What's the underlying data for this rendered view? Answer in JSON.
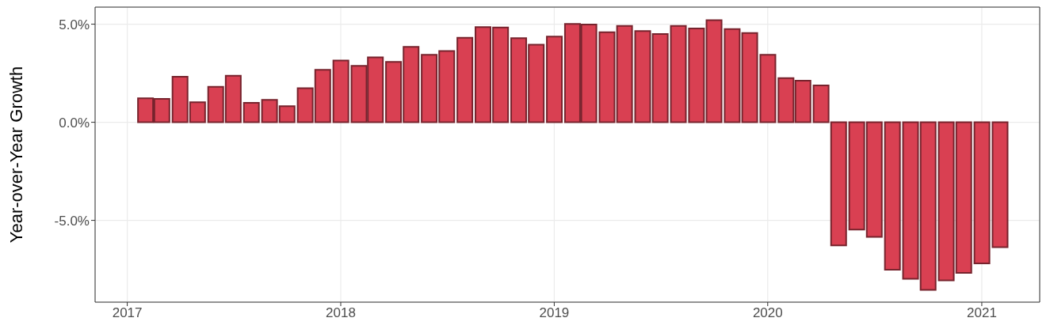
{
  "chart_data": {
    "type": "bar",
    "ylabel": "Year-over-Year Growth",
    "x": [
      "2017-02",
      "2017-03",
      "2017-04",
      "2017-05",
      "2017-06",
      "2017-07",
      "2017-08",
      "2017-09",
      "2017-10",
      "2017-11",
      "2017-12",
      "2018-01",
      "2018-02",
      "2018-03",
      "2018-04",
      "2018-05",
      "2018-06",
      "2018-07",
      "2018-08",
      "2018-09",
      "2018-10",
      "2018-11",
      "2018-12",
      "2019-01",
      "2019-02",
      "2019-03",
      "2019-04",
      "2019-05",
      "2019-06",
      "2019-07",
      "2019-08",
      "2019-09",
      "2019-10",
      "2019-11",
      "2019-12",
      "2020-01",
      "2020-02",
      "2020-03",
      "2020-04",
      "2020-05",
      "2020-06",
      "2020-07",
      "2020-08",
      "2020-09",
      "2020-10",
      "2020-11",
      "2020-12",
      "2021-01",
      "2021-02"
    ],
    "values": [
      1.22,
      1.19,
      2.32,
      1.02,
      1.81,
      2.37,
      0.99,
      1.14,
      0.82,
      1.74,
      2.67,
      3.15,
      2.88,
      3.31,
      3.08,
      3.84,
      3.44,
      3.63,
      4.31,
      4.85,
      4.83,
      4.29,
      3.95,
      4.37,
      5.01,
      4.98,
      4.59,
      4.91,
      4.65,
      4.5,
      4.91,
      4.78,
      5.2,
      4.75,
      4.55,
      3.44,
      2.25,
      2.12,
      1.88,
      -6.28,
      -5.47,
      -5.84,
      -7.52,
      -7.98,
      -8.55,
      -8.06,
      -7.68,
      -7.19,
      -6.37
    ],
    "color": "#d94052",
    "xlim": [
      "2016-11-07",
      "2021-04-10"
    ],
    "xticks": [
      "2017",
      "2018",
      "2019",
      "2020",
      "2021"
    ],
    "ylim": [
      -9.17,
      5.87
    ],
    "yticks": [
      {
        "value": -5,
        "label": "-5.0%"
      },
      {
        "value": 0,
        "label": "0.0%"
      },
      {
        "value": 5,
        "label": "5.0%"
      }
    ],
    "grid": true
  }
}
